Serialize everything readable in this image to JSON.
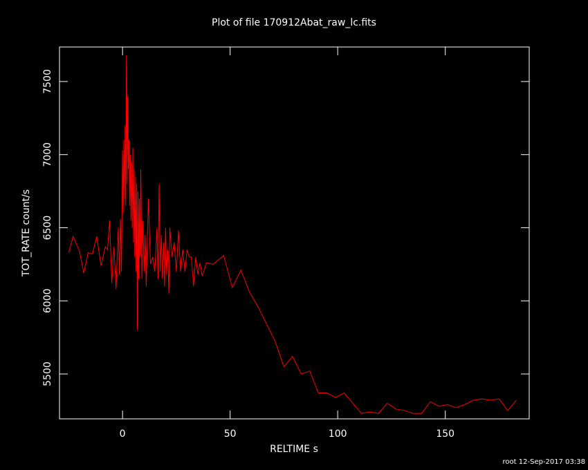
{
  "chart_data": {
    "type": "line",
    "title": "Plot of file 170912Abat_raw_lc.fits",
    "x_label": "RELTIME  s",
    "y_label": "TOT_RATE  count/s",
    "footer": "root 12-Sep-2017 03:38",
    "color": "#ff0000",
    "xlim": [
      -29.3,
      189
    ],
    "xticks": [
      0,
      50,
      100,
      150
    ],
    "ylim": [
      5193,
      7736
    ],
    "yticks": [
      5500,
      6000,
      6500,
      7000,
      7500
    ],
    "x": [
      -25,
      -23,
      -20,
      -18,
      -16,
      -14,
      -12,
      -10,
      -8,
      -7,
      -6,
      -5,
      -4,
      -3,
      -2,
      -1.5,
      -1,
      -0.5,
      0,
      0.3,
      0.6,
      0.9,
      1.2,
      1.5,
      1.8,
      2.1,
      2.4,
      2.7,
      3.0,
      3.3,
      3.6,
      3.9,
      4.2,
      4.5,
      4.8,
      5.1,
      5.4,
      5.7,
      6.0,
      6.3,
      6.6,
      6.9,
      7.2,
      7.5,
      7.8,
      8.1,
      8.5,
      9,
      9.5,
      10,
      10.5,
      11,
      12,
      13,
      14,
      15,
      16,
      16.5,
      17,
      17.5,
      18,
      18.5,
      19,
      19.5,
      20,
      20.5,
      21,
      21.5,
      22,
      23,
      24,
      25,
      26,
      27,
      28,
      29,
      30,
      31,
      32,
      33,
      34,
      35,
      36,
      37,
      39,
      42,
      47,
      51,
      55,
      59,
      63,
      67,
      71,
      75,
      79,
      83,
      87,
      91,
      95,
      99,
      103,
      107,
      111,
      115,
      119,
      123,
      127,
      131,
      135,
      139,
      143,
      147,
      151,
      155,
      159,
      163,
      167,
      171,
      175,
      179,
      183
    ],
    "values": [
      6330,
      6440,
      6340,
      6190,
      6330,
      6320,
      6440,
      6240,
      6370,
      6350,
      6550,
      6120,
      6370,
      6080,
      6500,
      6180,
      6560,
      6200,
      7030,
      6600,
      7100,
      6700,
      7200,
      6650,
      7680,
      6800,
      7400,
      6900,
      7100,
      6650,
      7000,
      6550,
      6950,
      6500,
      7050,
      6400,
      6900,
      6300,
      6850,
      6200,
      6800,
      5800,
      6750,
      6150,
      6700,
      6300,
      6900,
      6150,
      6550,
      6200,
      6450,
      6100,
      6700,
      6250,
      6300,
      6200,
      6500,
      6150,
      6800,
      6200,
      6450,
      6150,
      6400,
      6100,
      6500,
      6180,
      6350,
      6050,
      6500,
      6300,
      6400,
      6200,
      6480,
      6200,
      6350,
      6200,
      6350,
      6300,
      6300,
      6100,
      6300,
      6180,
      6260,
      6170,
      6260,
      6250,
      6310,
      6090,
      6210,
      6060,
      5960,
      5840,
      5720,
      5550,
      5620,
      5500,
      5520,
      5370,
      5370,
      5340,
      5370,
      5300,
      5230,
      5240,
      5230,
      5300,
      5260,
      5250,
      5230,
      5230,
      5310,
      5280,
      5290,
      5270,
      5290,
      5320,
      5330,
      5320,
      5330,
      5250,
      5320
    ]
  }
}
